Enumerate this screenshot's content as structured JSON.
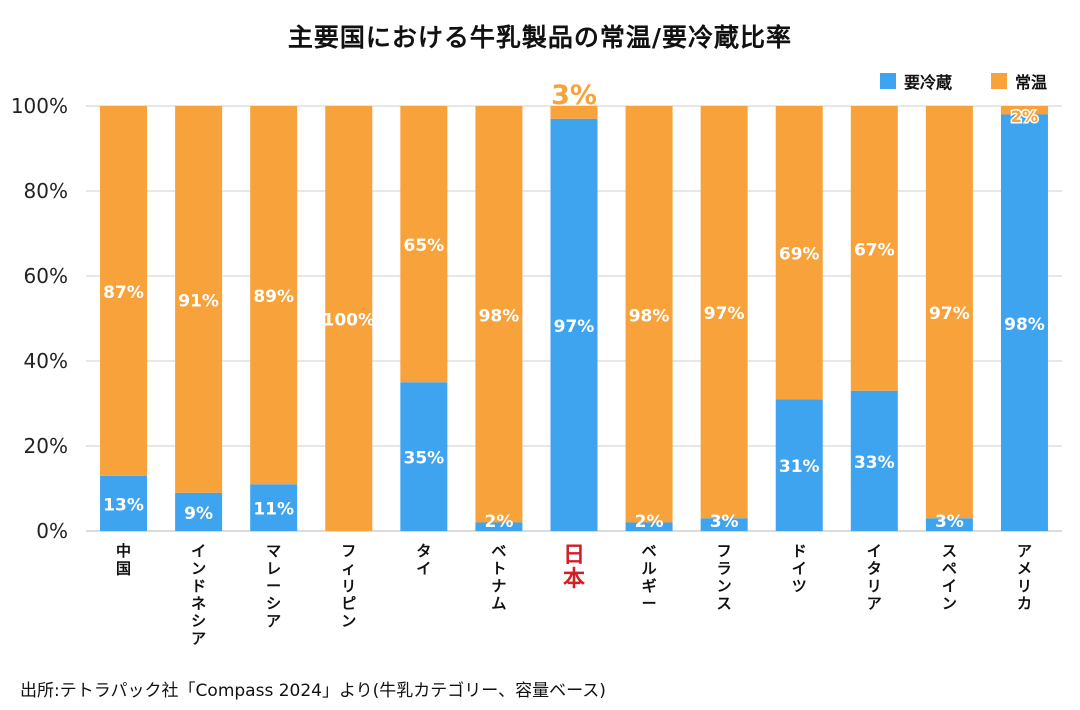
{
  "title": "主要国における牛乳製品の常温/要冷蔵比率",
  "source": "出所:テトラパック社「Compass 2024」より(牛乳カテゴリー、容量ベース)",
  "colors": {
    "refrigerated": "#3fa4ef",
    "ambient": "#f7a23a",
    "highlight": "#d11f25",
    "grid": "#cfcfcf"
  },
  "chart_data": {
    "type": "bar",
    "stacked": true,
    "percent": true,
    "title": "主要国における牛乳製品の常温/要冷蔵比率",
    "categories": [
      "中国",
      "インドネシア",
      "マレーシア",
      "フィリピン",
      "タイ",
      "ベトナム",
      "日本",
      "ベルギー",
      "フランス",
      "ドイツ",
      "イタリア",
      "スペイン",
      "アメリカ"
    ],
    "highlight_category": "日本",
    "series": [
      {
        "name": "要冷蔵",
        "values": [
          13,
          9,
          11,
          0,
          35,
          2,
          97,
          2,
          3,
          31,
          33,
          3,
          98
        ],
        "labels": [
          "13%",
          "9%",
          "11%",
          "",
          "35%",
          "2%",
          "97%",
          "2%",
          "3%",
          "31%",
          "33%",
          "3%",
          "98%"
        ]
      },
      {
        "name": "常温",
        "values": [
          87,
          91,
          89,
          100,
          65,
          98,
          3,
          98,
          97,
          69,
          67,
          97,
          2
        ],
        "labels": [
          "87%",
          "91%",
          "89%",
          "100%",
          "65%",
          "98%",
          "3%",
          "98%",
          "97%",
          "69%",
          "67%",
          "97%",
          "2%"
        ]
      }
    ],
    "yticks": [
      "0%",
      "20%",
      "40%",
      "60%",
      "80%",
      "100%"
    ],
    "ylim": [
      0,
      100
    ],
    "grid": true,
    "legend": "top-right"
  }
}
